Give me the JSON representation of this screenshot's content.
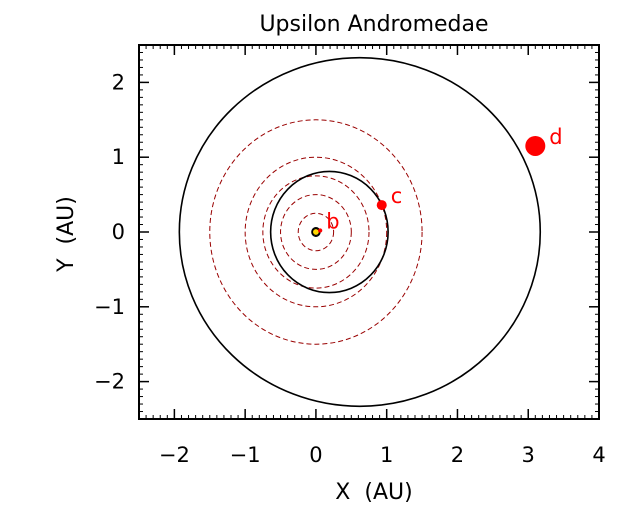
{
  "chart_data": {
    "type": "scatter",
    "title": "Upsilon Andromedae",
    "xlabel": "X  (AU)",
    "ylabel": "Y  (AU)",
    "xlim": [
      -2.5,
      4
    ],
    "ylim": [
      -2.5,
      2.5
    ],
    "xticks": [
      -2,
      -1,
      0,
      1,
      2,
      3,
      4
    ],
    "xtick_labels": [
      "−2",
      "−1",
      "0",
      "1",
      "2",
      "3",
      "4"
    ],
    "yticks": [
      -2,
      -1,
      0,
      1,
      2
    ],
    "ytick_labels": [
      "−2",
      "−1",
      "0",
      "1",
      "2"
    ],
    "grid": false,
    "star": {
      "x": 0,
      "y": 0,
      "color": "#ffd700"
    },
    "orbits": [
      {
        "planet": "b",
        "cx": 0,
        "cy": 0,
        "rx": 0.06,
        "ry": 0.06
      },
      {
        "planet": "c",
        "cx": 0.19,
        "cy": 0,
        "rx": 0.83,
        "ry": 0.81
      },
      {
        "planet": "d",
        "cx": 0.62,
        "cy": 0,
        "rx": 2.55,
        "ry": 2.33
      }
    ],
    "habitable_zone_circles": [
      0.25,
      0.5,
      0.75,
      1.0,
      1.5
    ],
    "planets": [
      {
        "label": "b",
        "x": 0.06,
        "y": 0.02,
        "size": 3
      },
      {
        "label": "c",
        "x": 0.93,
        "y": 0.36,
        "size": 7
      },
      {
        "label": "d",
        "x": 3.1,
        "y": 1.15,
        "size": 14
      }
    ],
    "colors": {
      "orbit": "#000000",
      "planet": "#ff0000",
      "hz_circle": "#990000",
      "star": "#ffd700"
    }
  }
}
